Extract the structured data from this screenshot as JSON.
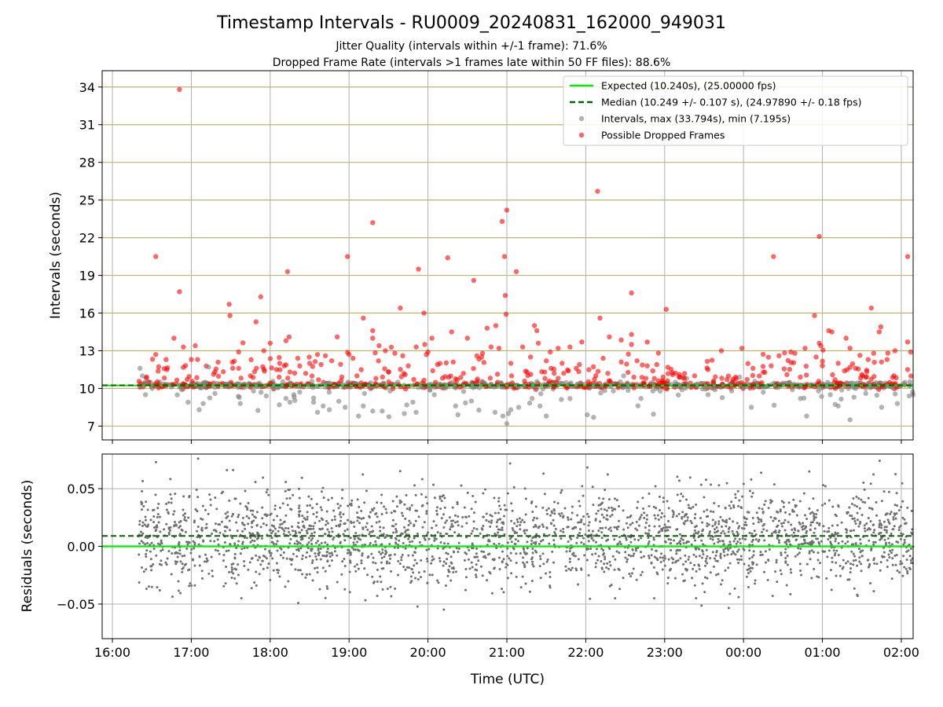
{
  "figure": {
    "title": "Timestamp Intervals - RU0009_20240831_162000_949031",
    "subtitle1": "Jitter Quality (intervals within +/-1 frame): 71.6%",
    "subtitle2": "Dropped Frame Rate (intervals >1 frames late within 50 FF files): 88.6%"
  },
  "colors": {
    "expected": "#00ee00",
    "median": "#006400",
    "intervals": "#808080",
    "dropped": "#ff0000",
    "hgrid_top": "#bdb76b",
    "grid": "#b0b0b0"
  },
  "chart_data": [
    {
      "type": "scatter",
      "panel": "top",
      "ylabel": "Intervals (seconds)",
      "xlabel": "",
      "x_axis": "time (hours, 16 = 16:00 on 2024-08-31, 26 = 02:00 next day)",
      "xlim": [
        15.87,
        26.15
      ],
      "ylim": [
        5.9,
        35.3
      ],
      "yticks": [
        7,
        10,
        13,
        16,
        19,
        22,
        25,
        28,
        31,
        34
      ],
      "xtick_labels": [
        "16:00",
        "17:00",
        "18:00",
        "19:00",
        "20:00",
        "21:00",
        "22:00",
        "23:00",
        "00:00",
        "01:00",
        "02:00"
      ],
      "xtick_values": [
        16,
        17,
        18,
        19,
        20,
        21,
        22,
        23,
        24,
        25,
        26
      ],
      "grid": true,
      "legend": "top-right",
      "legend_entries": [
        "Expected (10.240s), (25.00000 fps)",
        "Median (10.249 +/- 0.107 s), (24.97890 +/- 0.18 fps)",
        "Intervals, max (33.794s), min (7.195s)",
        "Possible Dropped Frames"
      ],
      "expected": 10.24,
      "median": 10.249,
      "data_start": 16.33,
      "data_end": 26.15,
      "dropped_outliers": [
        [
          16.55,
          20.5
        ],
        [
          16.55,
          12.7
        ],
        [
          16.85,
          33.8
        ],
        [
          16.85,
          17.7
        ],
        [
          16.78,
          14.0
        ],
        [
          16.9,
          13.3
        ],
        [
          16.69,
          11.5
        ],
        [
          17.05,
          13.4
        ],
        [
          17.0,
          12.3
        ],
        [
          17.08,
          12.3
        ],
        [
          17.48,
          16.7
        ],
        [
          17.49,
          15.8
        ],
        [
          17.3,
          11.3
        ],
        [
          17.6,
          12.9
        ],
        [
          17.6,
          11.6
        ],
        [
          17.88,
          17.3
        ],
        [
          17.82,
          15.3
        ],
        [
          17.92,
          13.0
        ],
        [
          18.0,
          13.6
        ],
        [
          18.12,
          12.0
        ],
        [
          18.22,
          19.3
        ],
        [
          18.24,
          14.1
        ],
        [
          18.2,
          13.8
        ],
        [
          18.35,
          12.4
        ],
        [
          18.45,
          11.2
        ],
        [
          18.5,
          12.0
        ],
        [
          18.6,
          12.7
        ],
        [
          18.78,
          12.2
        ],
        [
          18.85,
          14.1
        ],
        [
          18.98,
          20.5
        ],
        [
          19.0,
          12.7
        ],
        [
          19.05,
          12.4
        ],
        [
          19.1,
          11.0
        ],
        [
          19.18,
          15.6
        ],
        [
          19.3,
          23.2
        ],
        [
          19.3,
          14.6
        ],
        [
          19.3,
          14.0
        ],
        [
          19.38,
          13.4
        ],
        [
          19.46,
          13.0
        ],
        [
          19.5,
          11.3
        ],
        [
          19.65,
          16.4
        ],
        [
          19.68,
          12.6
        ],
        [
          19.85,
          13.3
        ],
        [
          19.88,
          19.5
        ],
        [
          19.95,
          16.0
        ],
        [
          20.0,
          12.9
        ],
        [
          20.05,
          14.0
        ],
        [
          20.25,
          20.4
        ],
        [
          20.3,
          14.5
        ],
        [
          20.32,
          12.1
        ],
        [
          20.45,
          11.2
        ],
        [
          20.5,
          14.0
        ],
        [
          20.58,
          18.6
        ],
        [
          20.62,
          12.6
        ],
        [
          20.75,
          14.8
        ],
        [
          20.8,
          13.3
        ],
        [
          20.86,
          15.0
        ],
        [
          20.9,
          13.2
        ],
        [
          20.94,
          23.3
        ],
        [
          20.97,
          20.5
        ],
        [
          20.98,
          17.4
        ],
        [
          21.0,
          24.2
        ],
        [
          20.99,
          15.9
        ],
        [
          21.05,
          12.0
        ],
        [
          21.06,
          11.0
        ],
        [
          21.12,
          19.3
        ],
        [
          21.2,
          13.3
        ],
        [
          21.3,
          12.5
        ],
        [
          21.35,
          15.0
        ],
        [
          21.38,
          14.6
        ],
        [
          21.4,
          13.6
        ],
        [
          21.48,
          11.3
        ],
        [
          21.55,
          12.9
        ],
        [
          21.65,
          13.2
        ],
        [
          21.7,
          12.0
        ],
        [
          21.8,
          13.3
        ],
        [
          21.88,
          11.6
        ],
        [
          21.95,
          13.7
        ],
        [
          21.92,
          11.9
        ],
        [
          22.15,
          25.7
        ],
        [
          22.18,
          15.6
        ],
        [
          22.22,
          12.4
        ],
        [
          22.28,
          11.2
        ],
        [
          22.3,
          14.1
        ],
        [
          22.58,
          17.6
        ],
        [
          22.58,
          14.3
        ],
        [
          22.58,
          13.5
        ],
        [
          22.65,
          12.2
        ],
        [
          22.78,
          13.7
        ],
        [
          22.78,
          11.8
        ],
        [
          22.85,
          11.4
        ],
        [
          22.98,
          10.9
        ],
        [
          23.02,
          16.3
        ],
        [
          23.1,
          11.1
        ],
        [
          23.38,
          11.0
        ],
        [
          23.55,
          11.5
        ],
        [
          23.72,
          13.0
        ],
        [
          23.98,
          13.2
        ],
        [
          24.12,
          11.6
        ],
        [
          24.25,
          11.3
        ],
        [
          24.38,
          20.5
        ],
        [
          24.45,
          12.6
        ],
        [
          24.55,
          11.1
        ],
        [
          24.6,
          12.9
        ],
        [
          24.65,
          12.8
        ],
        [
          24.78,
          13.2
        ],
        [
          24.92,
          12.5
        ],
        [
          24.96,
          22.1
        ],
        [
          24.9,
          15.8
        ],
        [
          24.96,
          13.6
        ],
        [
          24.98,
          13.4
        ],
        [
          25.0,
          11.8
        ],
        [
          25.08,
          14.6
        ],
        [
          25.12,
          14.5
        ],
        [
          25.2,
          12.0
        ],
        [
          25.3,
          14.0
        ],
        [
          25.35,
          13.2
        ],
        [
          25.42,
          11.6
        ],
        [
          25.5,
          11.1
        ],
        [
          25.58,
          12.3
        ],
        [
          25.62,
          16.4
        ],
        [
          25.65,
          12.8
        ],
        [
          25.72,
          14.5
        ],
        [
          25.74,
          14.9
        ],
        [
          25.82,
          12.3
        ],
        [
          25.92,
          13.0
        ],
        [
          26.08,
          20.5
        ],
        [
          26.08,
          13.7
        ],
        [
          26.08,
          11.5
        ],
        [
          26.12,
          12.9
        ],
        [
          24.35,
          11.8
        ],
        [
          23.9,
          10.9
        ],
        [
          18.7,
          12.6
        ],
        [
          19.58,
          12.8
        ],
        [
          20.12,
          11.9
        ],
        [
          21.6,
          11.2
        ],
        [
          22.45,
          12.1
        ],
        [
          23.25,
          10.8
        ],
        [
          24.72,
          10.9
        ],
        [
          25.28,
          11.4
        ],
        [
          17.75,
          11.0
        ],
        [
          18.08,
          11.5
        ],
        [
          19.75,
          11.8
        ],
        [
          20.68,
          12.5
        ],
        [
          21.78,
          11.4
        ],
        [
          22.9,
          11.9
        ],
        [
          25.55,
          10.9
        ]
      ],
      "grey_outliers": [
        [
          16.35,
          11.6
        ],
        [
          16.42,
          9.5
        ],
        [
          16.38,
          11.0
        ],
        [
          16.88,
          9.9
        ],
        [
          17.1,
          8.3
        ],
        [
          17.15,
          8.8
        ],
        [
          17.22,
          11.7
        ],
        [
          17.3,
          9.6
        ],
        [
          17.62,
          8.8
        ],
        [
          17.95,
          9.4
        ],
        [
          18.2,
          9.2
        ],
        [
          18.25,
          8.9
        ],
        [
          18.3,
          9.5
        ],
        [
          18.55,
          8.9
        ],
        [
          18.6,
          8.1
        ],
        [
          18.75,
          8.3
        ],
        [
          18.95,
          8.5
        ],
        [
          19.12,
          7.8
        ],
        [
          19.18,
          8.6
        ],
        [
          19.3,
          8.2
        ],
        [
          19.42,
          8.2
        ],
        [
          19.52,
          9.8
        ],
        [
          19.7,
          8.0
        ],
        [
          19.85,
          8.1
        ],
        [
          20.08,
          9.5
        ],
        [
          20.35,
          8.6
        ],
        [
          20.38,
          7.9
        ],
        [
          20.55,
          9.0
        ],
        [
          20.85,
          8.1
        ],
        [
          20.95,
          7.8
        ],
        [
          21.0,
          7.2
        ],
        [
          21.02,
          8.0
        ],
        [
          21.05,
          8.3
        ],
        [
          21.15,
          8.5
        ],
        [
          21.32,
          9.2
        ],
        [
          21.42,
          8.6
        ],
        [
          21.5,
          7.8
        ],
        [
          21.8,
          9.2
        ],
        [
          22.02,
          7.9
        ],
        [
          22.1,
          7.7
        ],
        [
          22.35,
          9.8
        ],
        [
          22.48,
          11.0
        ],
        [
          22.7,
          9.2
        ],
        [
          22.85,
          9.8
        ],
        [
          23.22,
          9.9
        ],
        [
          23.55,
          9.5
        ],
        [
          23.85,
          9.8
        ],
        [
          24.1,
          8.5
        ],
        [
          24.25,
          9.7
        ],
        [
          24.62,
          9.9
        ],
        [
          24.8,
          7.8
        ],
        [
          24.95,
          9.8
        ],
        [
          25.1,
          9.5
        ],
        [
          25.2,
          8.6
        ],
        [
          25.35,
          7.5
        ],
        [
          25.4,
          9.3
        ],
        [
          25.55,
          9.6
        ],
        [
          25.75,
          8.5
        ],
        [
          25.95,
          8.8
        ],
        [
          26.1,
          9.4
        ],
        [
          26.15,
          9.5
        ],
        [
          23.95,
          10.9
        ],
        [
          23.28,
          10.8
        ]
      ]
    },
    {
      "type": "scatter",
      "panel": "bottom",
      "ylabel": "Residuals (seconds)",
      "xlabel": "Time (UTC)",
      "xlim": [
        15.87,
        26.15
      ],
      "ylim": [
        -0.08,
        0.08
      ],
      "yticks": [
        0.05,
        0.0,
        -0.05
      ],
      "ytick_labels": [
        "0.05",
        "0.00",
        "−0.05"
      ],
      "xtick_labels": [
        "16:00",
        "17:00",
        "18:00",
        "19:00",
        "20:00",
        "21:00",
        "22:00",
        "23:00",
        "00:00",
        "01:00",
        "02:00"
      ],
      "xtick_values": [
        16,
        17,
        18,
        19,
        20,
        21,
        22,
        23,
        24,
        25,
        26
      ],
      "grid": true,
      "expected_residual": 0.0,
      "median_residual": 0.009,
      "residual_center": 0.008,
      "residual_spread": 0.02
    }
  ]
}
